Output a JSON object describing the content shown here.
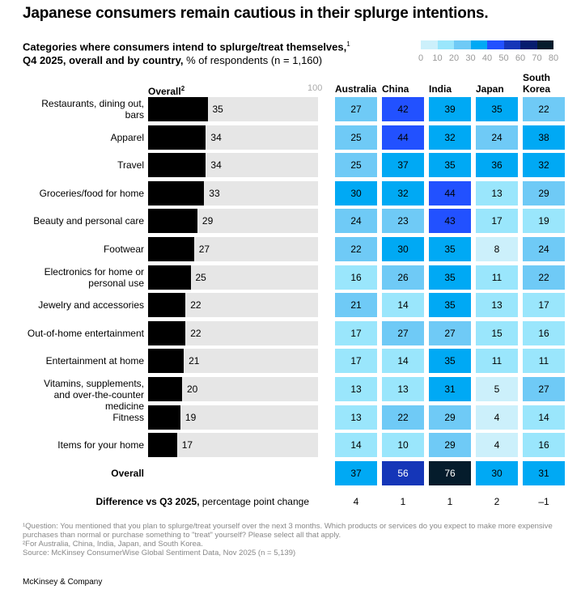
{
  "title": "Japanese consumers remain cautious in their splurge intentions.",
  "subtitle_bold": "Categories where consumers intend to splurge/treat themselves,",
  "subtitle_sup": "1",
  "subtitle_bold2": "Q4 2025, overall and by country,",
  "subtitle_rest": " % of respondents (n = 1,160)",
  "chart_data": {
    "type": "heatmap",
    "overall_header": "Overall",
    "overall_header_sup": "2",
    "bar_max_label": "100",
    "xlim": [
      0,
      100
    ],
    "categories": [
      "Restaurants, dining out, bars",
      "Apparel",
      "Travel",
      "Groceries/food for home",
      "Beauty and personal care",
      "Footwear",
      "Electronics for home or personal use",
      "Jewelry and accessories",
      "Out-of-home entertainment",
      "Entertainment at home",
      "Vitamins, supplements, and over-the-counter medicine",
      "Fitness",
      "Items for your home"
    ],
    "overall_values": [
      35,
      34,
      34,
      33,
      29,
      27,
      25,
      22,
      22,
      21,
      20,
      19,
      17
    ],
    "countries": [
      "Australia",
      "China",
      "India",
      "Japan",
      "South Korea"
    ],
    "values": [
      [
        27,
        42,
        39,
        35,
        22
      ],
      [
        25,
        44,
        32,
        24,
        38
      ],
      [
        25,
        37,
        35,
        36,
        32
      ],
      [
        30,
        32,
        44,
        13,
        29
      ],
      [
        24,
        23,
        43,
        17,
        19
      ],
      [
        22,
        30,
        35,
        8,
        24
      ],
      [
        16,
        26,
        35,
        11,
        22
      ],
      [
        21,
        14,
        35,
        13,
        17
      ],
      [
        17,
        27,
        27,
        15,
        16
      ],
      [
        17,
        14,
        35,
        11,
        11
      ],
      [
        13,
        13,
        31,
        5,
        27
      ],
      [
        13,
        22,
        29,
        4,
        14
      ],
      [
        14,
        10,
        29,
        4,
        16
      ]
    ],
    "overall_row_label": "Overall",
    "overall_row": [
      37,
      56,
      76,
      30,
      31
    ],
    "difference_label_bold": "Difference vs Q3 2025,",
    "difference_label_rest": " percentage point change",
    "difference": [
      "4",
      "1",
      "1",
      "2",
      "–1"
    ],
    "color_scale": {
      "ticks": [
        "0",
        "10",
        "20",
        "30",
        "40",
        "50",
        "60",
        "70",
        "80"
      ],
      "colors": [
        "#ccf0fb",
        "#9ae6fc",
        "#6fcaf6",
        "#00a9f4",
        "#2251ff",
        "#1536b8",
        "#051c6e",
        "#051c2c"
      ]
    }
  },
  "footnotes": [
    "¹Question: You mentioned that you plan to splurge/treat yourself over the next 3 months. Which products or services do you expect to make more expensive purchases than normal or purchase something to \"treat\" yourself? Please select all that apply.",
    "²For Australia, China, India, Japan, and South Korea.",
    "Source: McKinsey ConsumerWise Global Sentiment Data, Nov 2025 (n = 5,139)"
  ],
  "brand": "McKinsey & Company"
}
